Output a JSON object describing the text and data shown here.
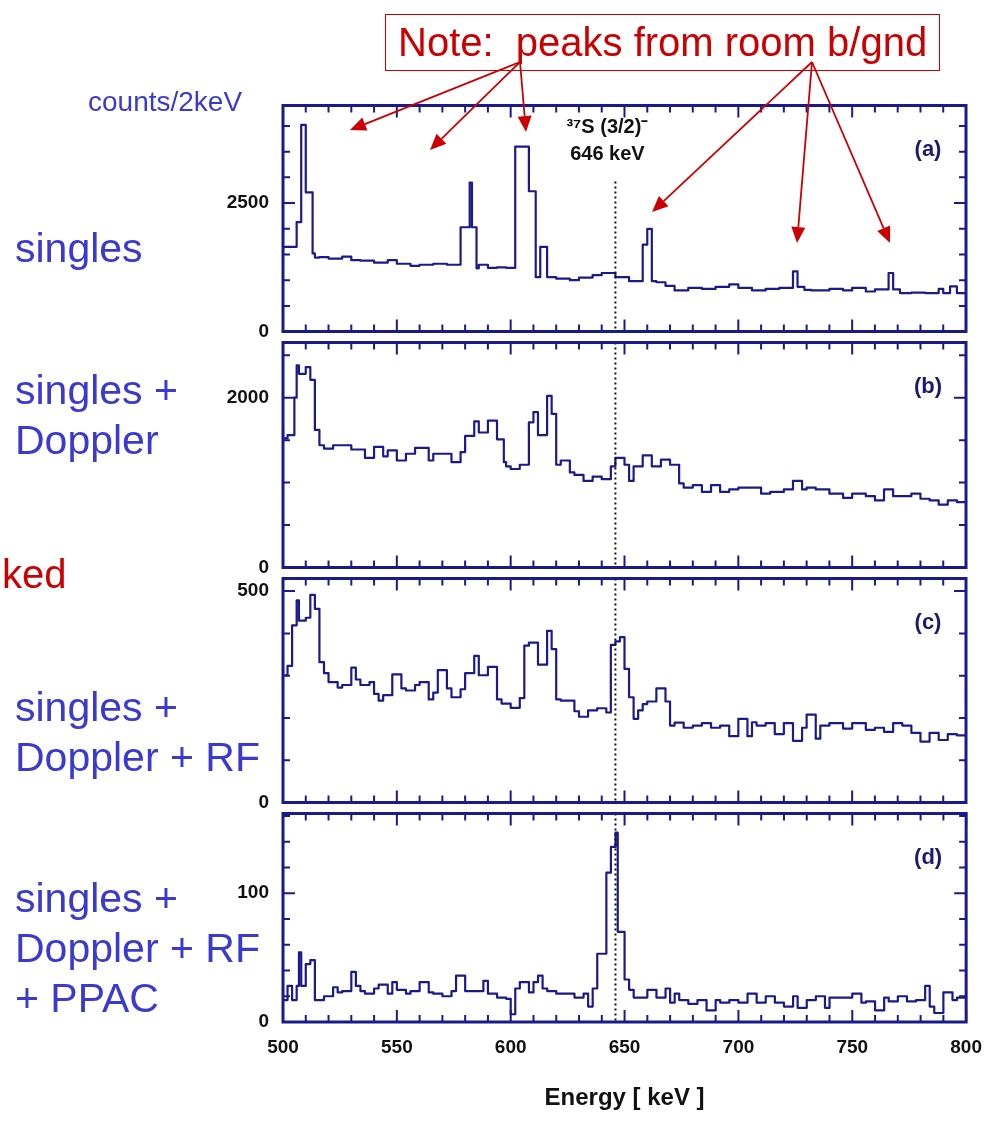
{
  "chart_data": [
    {
      "type": "step",
      "subtitle": "singles",
      "ylabel": "counts/2keV",
      "color": "#1a1a8c",
      "x": [
        500,
        506,
        508,
        510,
        513,
        514,
        516,
        520,
        526,
        530,
        534,
        540,
        546,
        550,
        556,
        560,
        566,
        572,
        578,
        582,
        583,
        585,
        586,
        590,
        594,
        598,
        602,
        608,
        611,
        613,
        616,
        620,
        626,
        630,
        636,
        640,
        646,
        652,
        658,
        660,
        662,
        664,
        668,
        672,
        678,
        684,
        690,
        696,
        700,
        706,
        712,
        718,
        724,
        726,
        729,
        732,
        740,
        746,
        750,
        756,
        760,
        766,
        768,
        771,
        776,
        782,
        788,
        790,
        793,
        796,
        798,
        800
      ],
      "values": [
        1570,
        1650,
        2130,
        4020,
        2710,
        1520,
        1440,
        1450,
        1420,
        1460,
        1390,
        1380,
        1340,
        1390,
        1320,
        1280,
        1300,
        1320,
        1300,
        2030,
        2900,
        2030,
        1230,
        1300,
        1240,
        1250,
        1240,
        3600,
        2730,
        1060,
        1650,
        1060,
        1030,
        1000,
        1050,
        1100,
        1140,
        1060,
        980,
        1690,
        2000,
        980,
        960,
        890,
        800,
        850,
        830,
        870,
        920,
        850,
        800,
        830,
        850,
        1170,
        870,
        810,
        800,
        830,
        800,
        850,
        780,
        820,
        1140,
        820,
        750,
        760,
        750,
        830,
        750,
        880,
        750,
        750
      ],
      "xlim": [
        500,
        800
      ],
      "xticks": [
        500,
        {
          "value": 510,
          "label": null
        },
        {
          "value": 520,
          "label": null
        },
        {
          "value": 530,
          "label": null
        },
        {
          "value": 540,
          "label": null
        },
        550,
        {
          "value": 560,
          "label": null
        },
        {
          "value": 570,
          "label": null
        },
        {
          "value": 580,
          "label": null
        },
        {
          "value": 590,
          "label": null
        },
        600,
        {
          "value": 610,
          "label": null
        },
        {
          "value": 620,
          "label": null
        },
        {
          "value": 630,
          "label": null
        },
        {
          "value": 640,
          "label": null
        },
        650,
        {
          "value": 660,
          "label": null
        },
        {
          "value": 670,
          "label": null
        },
        {
          "value": 680,
          "label": null
        },
        {
          "value": 690,
          "label": null
        },
        700,
        {
          "value": 710,
          "label": null
        },
        {
          "value": 720,
          "label": null
        },
        {
          "value": 730,
          "label": null
        },
        {
          "value": 740,
          "label": null
        },
        750,
        {
          "value": 760,
          "label": null
        },
        {
          "value": 770,
          "label": null
        },
        {
          "value": 780,
          "label": null
        },
        {
          "value": 790,
          "label": null
        },
        800
      ],
      "ylim": [
        0,
        4400
      ],
      "yticks": [
        0,
        {
          "value": 500,
          "label": null
        },
        {
          "value": 1000,
          "label": null
        },
        {
          "value": 1500,
          "label": null
        },
        {
          "value": 2000,
          "label": null
        },
        2500,
        {
          "value": 3000,
          "label": null
        },
        {
          "value": 3500,
          "label": null
        },
        {
          "value": 4000,
          "label": null
        }
      ],
      "tick_labels": "y",
      "ref_lines": [
        {
          "axis": "x",
          "value": 646,
          "label": "³⁷S (3/2)⁻\n646 keV",
          "color": "#111111",
          "line_style": "dotted"
        }
      ],
      "annotations": [
        "(a)",
        "Note:  peaks from room b/gnd"
      ]
    },
    {
      "type": "step",
      "subtitle": "singles + Doppler",
      "color": "#1a1a8c",
      "x": [
        500,
        502,
        505,
        506,
        507,
        510,
        512,
        514,
        516,
        518,
        522,
        530,
        536,
        540,
        544,
        546,
        550,
        554,
        558,
        564,
        566,
        574,
        578,
        580,
        584,
        586,
        590,
        594,
        597,
        598,
        600,
        604,
        608,
        610,
        612,
        616,
        618,
        620,
        622,
        626,
        628,
        632,
        636,
        640,
        644,
        646,
        650,
        652,
        654,
        658,
        662,
        666,
        670,
        674,
        676,
        680,
        684,
        688,
        692,
        696,
        700,
        704,
        710,
        714,
        720,
        724,
        728,
        730,
        734,
        740,
        746,
        750,
        756,
        760,
        764,
        768,
        772,
        776,
        780,
        784,
        788,
        792,
        796,
        800
      ],
      "values": [
        1630,
        1520,
        1560,
        2000,
        2380,
        2280,
        2360,
        2210,
        1620,
        1440,
        1400,
        1440,
        1390,
        1290,
        1420,
        1310,
        1380,
        1260,
        1340,
        1410,
        1260,
        1340,
        1240,
        1360,
        1550,
        1720,
        1590,
        1730,
        1510,
        1240,
        1190,
        1160,
        1210,
        1710,
        1830,
        1560,
        2020,
        1810,
        1210,
        1260,
        1120,
        1090,
        1020,
        1070,
        1040,
        1190,
        1290,
        1210,
        1020,
        1190,
        1320,
        1190,
        1270,
        1210,
        990,
        940,
        970,
        890,
        970,
        890,
        920,
        940,
        940,
        870,
        890,
        920,
        1020,
        920,
        940,
        920,
        870,
        820,
        870,
        840,
        790,
        920,
        840,
        840,
        870,
        810,
        790,
        740,
        790,
        770
      ],
      "xlim": [
        500,
        800
      ],
      "xticks": [
        500,
        {
          "value": 510,
          "label": null
        },
        {
          "value": 520,
          "label": null
        },
        {
          "value": 530,
          "label": null
        },
        {
          "value": 540,
          "label": null
        },
        550,
        {
          "value": 560,
          "label": null
        },
        {
          "value": 570,
          "label": null
        },
        {
          "value": 580,
          "label": null
        },
        {
          "value": 590,
          "label": null
        },
        600,
        {
          "value": 610,
          "label": null
        },
        {
          "value": 620,
          "label": null
        },
        {
          "value": 630,
          "label": null
        },
        {
          "value": 640,
          "label": null
        },
        650,
        {
          "value": 660,
          "label": null
        },
        {
          "value": 670,
          "label": null
        },
        {
          "value": 680,
          "label": null
        },
        {
          "value": 690,
          "label": null
        },
        700,
        {
          "value": 710,
          "label": null
        },
        {
          "value": 720,
          "label": null
        },
        {
          "value": 730,
          "label": null
        },
        {
          "value": 740,
          "label": null
        },
        750,
        {
          "value": 760,
          "label": null
        },
        {
          "value": 770,
          "label": null
        },
        {
          "value": 780,
          "label": null
        },
        {
          "value": 790,
          "label": null
        },
        800
      ],
      "ylim": [
        0,
        2650
      ],
      "yticks": [
        0,
        {
          "value": 500,
          "label": null
        },
        {
          "value": 1000,
          "label": null
        },
        {
          "value": 1500,
          "label": null
        },
        2000,
        {
          "value": 2500,
          "label": null
        }
      ],
      "tick_labels": "y",
      "ref_lines": [
        {
          "axis": "x",
          "value": 646,
          "color": "#111111",
          "line_style": "dotted"
        }
      ],
      "annotations": [
        "(b)"
      ]
    },
    {
      "type": "step",
      "subtitle": "singles + Doppler + RF",
      "color": "#1a1a8c",
      "x": [
        500,
        502,
        504,
        506,
        507,
        510,
        512,
        514,
        516,
        518,
        520,
        524,
        526,
        530,
        532,
        534,
        538,
        540,
        542,
        544,
        548,
        552,
        554,
        558,
        560,
        564,
        566,
        568,
        572,
        574,
        578,
        580,
        584,
        586,
        590,
        594,
        596,
        600,
        604,
        606,
        608,
        612,
        616,
        618,
        620,
        622,
        628,
        630,
        634,
        638,
        642,
        644,
        646,
        648,
        650,
        652,
        654,
        656,
        658,
        660,
        664,
        668,
        670,
        672,
        676,
        680,
        684,
        688,
        692,
        696,
        700,
        704,
        706,
        708,
        712,
        716,
        720,
        724,
        728,
        730,
        734,
        736,
        740,
        746,
        750,
        756,
        760,
        764,
        768,
        772,
        776,
        780,
        784,
        788,
        792,
        796,
        800
      ],
      "values": [
        319,
        301,
        323,
        419,
        478,
        430,
        437,
        491,
        458,
        332,
        306,
        285,
        272,
        278,
        319,
        291,
        278,
        285,
        257,
        241,
        254,
        303,
        270,
        265,
        278,
        285,
        244,
        260,
        313,
        270,
        249,
        268,
        306,
        347,
        301,
        321,
        244,
        234,
        224,
        247,
        371,
        378,
        326,
        406,
        363,
        244,
        241,
        216,
        203,
        218,
        223,
        213,
        373,
        381,
        391,
        316,
        249,
        198,
        218,
        233,
        239,
        270,
        239,
        182,
        189,
        177,
        182,
        188,
        177,
        182,
        157,
        198,
        157,
        190,
        182,
        188,
        162,
        188,
        146,
        177,
        208,
        151,
        182,
        188,
        175,
        188,
        172,
        177,
        167,
        188,
        182,
        165,
        144,
        165,
        148,
        162,
        159
      ],
      "xlim": [
        500,
        800
      ],
      "xticks": [
        500,
        {
          "value": 510,
          "label": null
        },
        {
          "value": 520,
          "label": null
        },
        {
          "value": 530,
          "label": null
        },
        {
          "value": 540,
          "label": null
        },
        550,
        {
          "value": 560,
          "label": null
        },
        {
          "value": 570,
          "label": null
        },
        {
          "value": 580,
          "label": null
        },
        {
          "value": 590,
          "label": null
        },
        600,
        {
          "value": 610,
          "label": null
        },
        {
          "value": 620,
          "label": null
        },
        {
          "value": 630,
          "label": null
        },
        {
          "value": 640,
          "label": null
        },
        650,
        {
          "value": 660,
          "label": null
        },
        {
          "value": 670,
          "label": null
        },
        {
          "value": 680,
          "label": null
        },
        {
          "value": 690,
          "label": null
        },
        700,
        {
          "value": 710,
          "label": null
        },
        {
          "value": 720,
          "label": null
        },
        {
          "value": 730,
          "label": null
        },
        {
          "value": 740,
          "label": null
        },
        750,
        {
          "value": 760,
          "label": null
        },
        {
          "value": 770,
          "label": null
        },
        {
          "value": 780,
          "label": null
        },
        {
          "value": 790,
          "label": null
        },
        800
      ],
      "ylim": [
        0,
        530
      ],
      "yticks": [
        0,
        {
          "value": 100,
          "label": null
        },
        {
          "value": 200,
          "label": null
        },
        {
          "value": 300,
          "label": null
        },
        {
          "value": 400,
          "label": null
        },
        500
      ],
      "tick_labels": "y",
      "ref_lines": [
        {
          "axis": "x",
          "value": 646,
          "color": "#111111",
          "line_style": "dotted"
        }
      ],
      "annotations": [
        "(c)",
        "ked"
      ]
    },
    {
      "type": "step",
      "subtitle": "singles + Doppler + RF + PPAC",
      "xlabel": "Energy [ keV ]",
      "color": "#1a1a8c",
      "x": [
        500,
        502,
        504,
        506,
        507,
        508,
        510,
        512,
        514,
        518,
        522,
        524,
        526,
        530,
        532,
        534,
        536,
        540,
        542,
        546,
        548,
        550,
        554,
        556,
        560,
        564,
        566,
        570,
        574,
        576,
        580,
        584,
        588,
        590,
        594,
        598,
        600,
        602,
        604,
        608,
        610,
        612,
        614,
        616,
        620,
        624,
        628,
        632,
        634,
        636,
        638,
        642,
        644,
        646,
        647,
        650,
        652,
        654,
        656,
        660,
        664,
        668,
        670,
        672,
        674,
        678,
        682,
        686,
        690,
        692,
        696,
        700,
        704,
        708,
        712,
        716,
        718,
        720,
        724,
        726,
        730,
        734,
        738,
        740,
        744,
        750,
        754,
        756,
        760,
        764,
        766,
        770,
        774,
        778,
        782,
        784,
        786,
        790,
        794,
        796,
        800
      ],
      "values": [
        26,
        17,
        28,
        17,
        28,
        54,
        28,
        45,
        48,
        17,
        20,
        27,
        23,
        24,
        39,
        28,
        24,
        22,
        26,
        29,
        22,
        31,
        25,
        22,
        24,
        31,
        23,
        22,
        20,
        24,
        36,
        24,
        24,
        32,
        22,
        19,
        18,
        6,
        26,
        31,
        23,
        31,
        36,
        26,
        24,
        22,
        22,
        19,
        22,
        12,
        26,
        53,
        116,
        136,
        147,
        70,
        33,
        25,
        19,
        19,
        25,
        19,
        26,
        15,
        22,
        17,
        14,
        17,
        9,
        17,
        15,
        17,
        15,
        22,
        15,
        20,
        15,
        15,
        12,
        20,
        11,
        17,
        20,
        11,
        19,
        19,
        22,
        15,
        16,
        9,
        19,
        16,
        20,
        16,
        17,
        28,
        12,
        7,
        23,
        17,
        19
      ],
      "xlim": [
        500,
        800
      ],
      "xticks": [
        500,
        {
          "value": 510,
          "label": null
        },
        {
          "value": 520,
          "label": null
        },
        {
          "value": 530,
          "label": null
        },
        {
          "value": 540,
          "label": null
        },
        550,
        {
          "value": 560,
          "label": null
        },
        {
          "value": 570,
          "label": null
        },
        {
          "value": 580,
          "label": null
        },
        {
          "value": 590,
          "label": null
        },
        600,
        {
          "value": 610,
          "label": null
        },
        {
          "value": 620,
          "label": null
        },
        {
          "value": 630,
          "label": null
        },
        {
          "value": 640,
          "label": null
        },
        650,
        {
          "value": 660,
          "label": null
        },
        {
          "value": 670,
          "label": null
        },
        {
          "value": 680,
          "label": null
        },
        {
          "value": 690,
          "label": null
        },
        700,
        {
          "value": 710,
          "label": null
        },
        {
          "value": 720,
          "label": null
        },
        {
          "value": 730,
          "label": null
        },
        {
          "value": 740,
          "label": null
        },
        750,
        {
          "value": 760,
          "label": null
        },
        {
          "value": 770,
          "label": null
        },
        {
          "value": 780,
          "label": null
        },
        {
          "value": 790,
          "label": null
        },
        800
      ],
      "ylim": [
        0,
        162
      ],
      "yticks": [
        0,
        {
          "value": 20,
          "label": null
        },
        {
          "value": 40,
          "label": null
        },
        {
          "value": 60,
          "label": null
        },
        {
          "value": 80,
          "label": null
        },
        100,
        {
          "value": 120,
          "label": null
        },
        {
          "value": 140,
          "label": null
        },
        {
          "value": 160,
          "label": null
        }
      ],
      "ref_lines": [
        {
          "axis": "x",
          "value": 646,
          "color": "#111111",
          "line_style": "dotted"
        }
      ],
      "annotations": [
        "(d)"
      ]
    }
  ]
}
